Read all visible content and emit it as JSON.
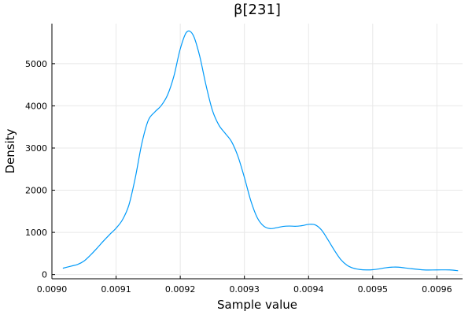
{
  "chart_data": {
    "type": "line",
    "title": "β[231]",
    "xlabel": "Sample value",
    "ylabel": "Density",
    "xlim": [
      0.009,
      0.00964
    ],
    "ylim": [
      -100,
      5950
    ],
    "grid": true,
    "xticks": [
      0.009,
      0.0091,
      0.0092,
      0.0093,
      0.0094,
      0.0095,
      0.0096
    ],
    "xtick_labels": [
      "0.0090",
      "0.0091",
      "0.0092",
      "0.0093",
      "0.0094",
      "0.0095",
      "0.0096"
    ],
    "yticks": [
      0,
      1000,
      2000,
      3000,
      4000,
      5000
    ],
    "ytick_labels": [
      "0",
      "1000",
      "2000",
      "3000",
      "4000",
      "5000"
    ],
    "series": [
      {
        "name": "density",
        "color": "#009af9",
        "x": [
          0.009017,
          0.00903,
          0.00904,
          0.00905,
          0.00906,
          0.00907,
          0.00908,
          0.00909,
          0.0091,
          0.00911,
          0.00912,
          0.00913,
          0.00914,
          0.00915,
          0.00916,
          0.00917,
          0.00918,
          0.00919,
          0.0092,
          0.00921,
          0.00922,
          0.00923,
          0.00924,
          0.00925,
          0.00926,
          0.00927,
          0.00928,
          0.00929,
          0.0093,
          0.00931,
          0.00932,
          0.00933,
          0.00934,
          0.00935,
          0.00936,
          0.00937,
          0.00938,
          0.00939,
          0.0094,
          0.00941,
          0.00942,
          0.00943,
          0.00944,
          0.00945,
          0.00946,
          0.00947,
          0.00948,
          0.00949,
          0.0095,
          0.00951,
          0.00952,
          0.00953,
          0.00954,
          0.00956,
          0.00958,
          0.0096,
          0.00962,
          0.009633
        ],
        "values": [
          150,
          200,
          240,
          320,
          460,
          620,
          790,
          950,
          1100,
          1300,
          1650,
          2300,
          3100,
          3650,
          3850,
          4000,
          4250,
          4700,
          5350,
          5750,
          5680,
          5200,
          4500,
          3900,
          3550,
          3350,
          3150,
          2800,
          2300,
          1750,
          1350,
          1150,
          1090,
          1110,
          1140,
          1150,
          1145,
          1160,
          1190,
          1180,
          1060,
          830,
          580,
          360,
          220,
          150,
          120,
          110,
          115,
          135,
          160,
          175,
          175,
          140,
          110,
          110,
          110,
          90
        ]
      }
    ]
  }
}
